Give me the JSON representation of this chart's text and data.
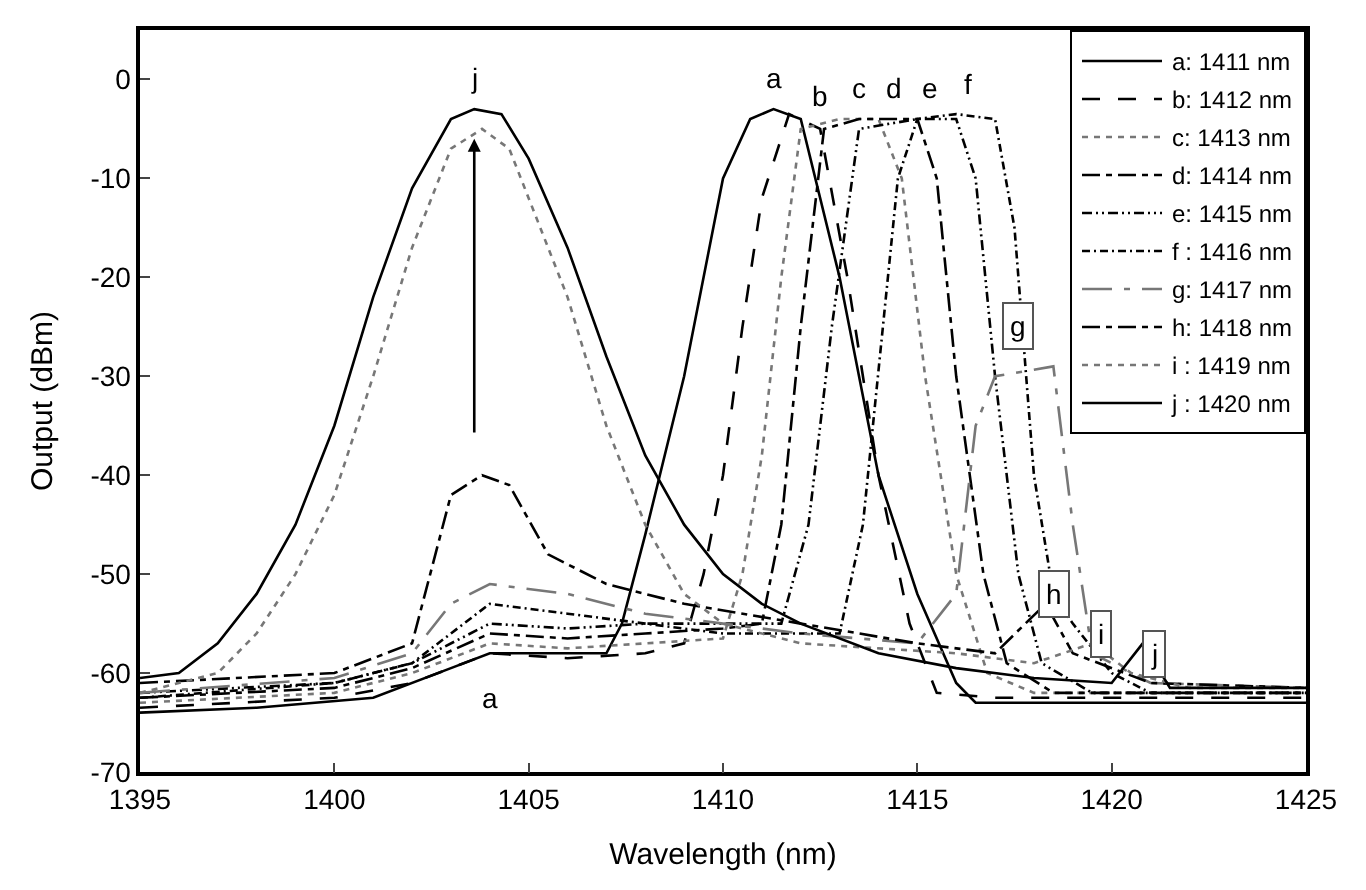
{
  "chart_data": {
    "type": "line",
    "xlabel": "Wavelength (nm)",
    "ylabel": "Output (dBm)",
    "xlim": [
      1395,
      1425
    ],
    "xticks": [
      1395,
      1400,
      1405,
      1410,
      1415,
      1420,
      1425
    ],
    "ylim": [
      -70,
      5
    ],
    "yticks": [
      -70,
      -60,
      -50,
      -40,
      -30,
      -20,
      -10,
      0
    ],
    "legend": "top right",
    "marker": "none",
    "annotations": [
      {
        "text": "j",
        "x": 1403.6,
        "y": -3
      },
      {
        "text": "a",
        "x": 1411.3,
        "y": -3
      },
      {
        "text": "b",
        "x": 1412.5,
        "y": -5
      },
      {
        "text": "c",
        "x": 1413.5,
        "y": -4
      },
      {
        "text": "d",
        "x": 1414.4,
        "y": -4
      },
      {
        "text": "e",
        "x": 1415.3,
        "y": -4
      },
      {
        "text": "f",
        "x": 1416.3,
        "y": -3.6
      },
      {
        "text": "a",
        "x": 1404,
        "y": -58
      },
      {
        "text": "g",
        "x": 1417.6,
        "y": -25
      },
      {
        "text": "h",
        "x": 1418.5,
        "y": -52
      },
      {
        "text": "i",
        "x": 1419.7,
        "y": -56
      },
      {
        "text": "j",
        "x": 1421.1,
        "y": -58
      }
    ],
    "series": [
      {
        "name": "a: 1411 nm",
        "color": "#000000",
        "line_style": "solid",
        "x": [
          1395,
          1398,
          1401,
          1403,
          1404,
          1407,
          1407.4,
          1408,
          1409,
          1410,
          1410.7,
          1411.3,
          1412,
          1413,
          1414,
          1415,
          1416,
          1416.5,
          1420,
          1425
        ],
        "values": [
          -64,
          -63.5,
          -62.5,
          -59.5,
          -58,
          -58,
          -55,
          -46,
          -30,
          -10,
          -4,
          -3,
          -4,
          -20,
          -40,
          -52,
          -61,
          -63,
          -63,
          -63
        ]
      },
      {
        "name": "b: 1412 nm",
        "color": "#000000",
        "line_style": "dash",
        "x": [
          1395,
          1400,
          1402,
          1404,
          1406,
          1408,
          1409,
          1409.5,
          1410,
          1410.5,
          1411,
          1411.7,
          1412.5,
          1413.2,
          1414,
          1414.8,
          1415.5,
          1417,
          1425
        ],
        "values": [
          -63.5,
          -62.5,
          -61,
          -58,
          -58.5,
          -58,
          -57,
          -50,
          -40,
          -25,
          -12,
          -3.5,
          -5,
          -20,
          -40,
          -55,
          -62,
          -62.5,
          -62.5
        ]
      },
      {
        "name": "c: 1413 nm",
        "color": "#777777",
        "line_style": "dot",
        "x": [
          1395,
          1400,
          1402,
          1404,
          1406,
          1408,
          1410,
          1410.5,
          1411,
          1411.5,
          1412,
          1413,
          1414,
          1414.6,
          1415.2,
          1416,
          1416.8,
          1418,
          1425
        ],
        "values": [
          -63,
          -62,
          -60,
          -57,
          -57.5,
          -57,
          -56.5,
          -50,
          -38,
          -20,
          -5,
          -4,
          -4,
          -10,
          -30,
          -50,
          -60,
          -62,
          -62
        ]
      },
      {
        "name": "d: 1414 nm",
        "color": "#000000",
        "line_style": "dashdot",
        "x": [
          1395,
          1400,
          1402,
          1404,
          1406,
          1408,
          1410,
          1411,
          1411.5,
          1412,
          1412.6,
          1413.5,
          1415,
          1415.5,
          1416,
          1416.7,
          1417.3,
          1418.5,
          1425
        ],
        "values": [
          -62.5,
          -61.5,
          -59.5,
          -56,
          -56.5,
          -56,
          -55.5,
          -55,
          -45,
          -25,
          -5,
          -4,
          -4,
          -10,
          -30,
          -50,
          -59,
          -62,
          -62
        ]
      },
      {
        "name": "e: 1415 nm",
        "color": "#000000",
        "line_style": "5px,2px,1px,2px,1px,2px",
        "x": [
          1395,
          1400,
          1402,
          1404,
          1406,
          1408,
          1410,
          1411.5,
          1412.2,
          1412.8,
          1413.5,
          1415,
          1416,
          1416.5,
          1417,
          1417.6,
          1418.2,
          1419.5,
          1425
        ],
        "values": [
          -62,
          -61,
          -59,
          -55,
          -55.5,
          -55,
          -55,
          -55,
          -45,
          -25,
          -5,
          -4,
          -4,
          -10,
          -30,
          -50,
          -59,
          -62,
          -62
        ]
      },
      {
        "name": "f : 1416 nm",
        "color": "#000000",
        "line_style": "4px,2px,1px,2px",
        "x": [
          1395,
          1400,
          1402,
          1404,
          1406,
          1408,
          1410,
          1412,
          1413,
          1413.6,
          1414.5,
          1415,
          1416,
          1417,
          1417.5,
          1418,
          1418.5,
          1419,
          1420,
          1421,
          1425
        ],
        "values": [
          -62.5,
          -61,
          -59,
          -53,
          -54,
          -55,
          -56,
          -56,
          -56,
          -45,
          -10,
          -4,
          -3.5,
          -4,
          -15,
          -40,
          -52,
          -55,
          -60,
          -62,
          -62
        ]
      },
      {
        "name": "g: 1417 nm",
        "color": "#777777",
        "line_style": "longdashdot",
        "x": [
          1395,
          1400,
          1402,
          1403,
          1404,
          1406,
          1408,
          1410,
          1412,
          1415,
          1416,
          1416.5,
          1417,
          1418.5,
          1419,
          1419.5,
          1421,
          1425
        ],
        "values": [
          -62,
          -60.5,
          -58,
          -53,
          -51,
          -52,
          -54,
          -55,
          -56,
          -57,
          -52,
          -35,
          -30,
          -29,
          -45,
          -58,
          -61,
          -61.5
        ]
      },
      {
        "name": "h: 1418 nm",
        "color": "#000000",
        "line_style": "dashdot",
        "x": [
          1395,
          1400,
          1402,
          1403,
          1403.8,
          1404.5,
          1405.5,
          1407,
          1409,
          1412,
          1415,
          1417,
          1418.3,
          1419,
          1421,
          1425
        ],
        "values": [
          -61,
          -60,
          -57,
          -42,
          -40,
          -41,
          -48,
          -51,
          -53,
          -55,
          -57,
          -58,
          -53,
          -58,
          -61,
          -61.5
        ]
      },
      {
        "name": "i : 1419 nm",
        "color": "#777777",
        "line_style": "dot",
        "x": [
          1395,
          1397,
          1398,
          1399,
          1400,
          1401,
          1402,
          1403,
          1403.8,
          1404.5,
          1405,
          1406,
          1407,
          1408,
          1409,
          1410,
          1412,
          1416,
          1418,
          1419.5,
          1420.5,
          1422,
          1425
        ],
        "values": [
          -62,
          -60,
          -56,
          -50,
          -42,
          -30,
          -17,
          -7,
          -5,
          -7,
          -12,
          -22,
          -35,
          -45,
          -52,
          -55,
          -57,
          -58,
          -59,
          -57,
          -60,
          -61.5,
          -61.5
        ]
      },
      {
        "name": "j : 1420 nm",
        "color": "#000000",
        "line_style": "solid",
        "x": [
          1395,
          1396,
          1397,
          1398,
          1399,
          1400,
          1401,
          1402,
          1403,
          1403.6,
          1404.3,
          1405,
          1406,
          1407,
          1408,
          1409,
          1410,
          1411,
          1412,
          1414,
          1416,
          1418,
          1420,
          1420.8,
          1421.5,
          1425
        ],
        "values": [
          -60.5,
          -60,
          -57,
          -52,
          -45,
          -35,
          -22,
          -11,
          -4,
          -3,
          -3.5,
          -8,
          -17,
          -28,
          -38,
          -45,
          -50,
          -53,
          -55,
          -58,
          -59.5,
          -60.5,
          -61,
          -57,
          -61.5,
          -61.5
        ]
      }
    ]
  }
}
